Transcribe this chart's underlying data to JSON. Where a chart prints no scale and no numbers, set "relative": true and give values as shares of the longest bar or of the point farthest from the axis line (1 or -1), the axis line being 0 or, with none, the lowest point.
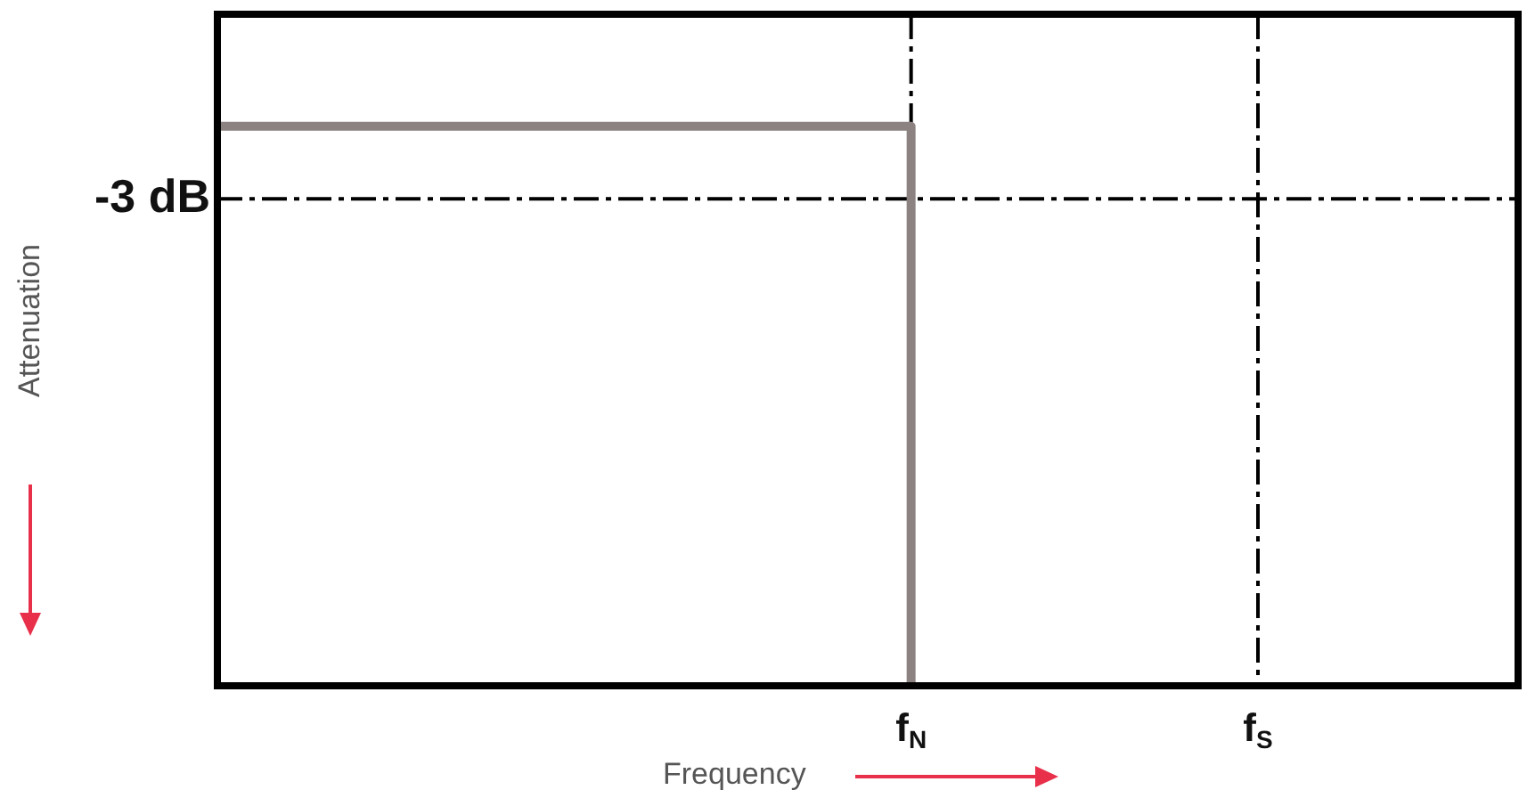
{
  "chart_data": {
    "type": "step",
    "relative": true,
    "xlabel": "Frequency",
    "annotations": [
      "Attenuation"
    ],
    "categories": [
      null,
      null,
      null,
      null,
      null,
      null,
      null,
      null,
      null,
      null,
      null,
      null,
      null,
      null,
      null,
      null,
      "f$_{N}$",
      null,
      null,
      null,
      null,
      null,
      null,
      null,
      "f$_{S}$",
      null,
      null,
      null,
      null,
      null,
      null
    ],
    "series": [
      {
        "color": "#8c8282",
        "values": [
          1,
          1,
          1,
          1,
          1,
          1,
          1,
          1,
          1,
          1,
          1,
          1,
          1,
          1,
          1,
          1,
          0,
          null,
          null,
          null,
          null,
          null,
          null,
          null,
          null,
          null,
          null,
          null,
          null,
          null,
          null
        ]
      }
    ],
    "ref_lines": [
      {
        "axis": "y",
        "value": 0.87,
        "label": "-3 dB",
        "line_style": "dashed"
      },
      {
        "axis": "x",
        "value": "f$_{N}$",
        "line_style": "dashed"
      },
      {
        "axis": "x",
        "value": "f$_{S}$",
        "line_style": "dashed"
      }
    ],
    "marker": "none",
    "legend": false
  }
}
